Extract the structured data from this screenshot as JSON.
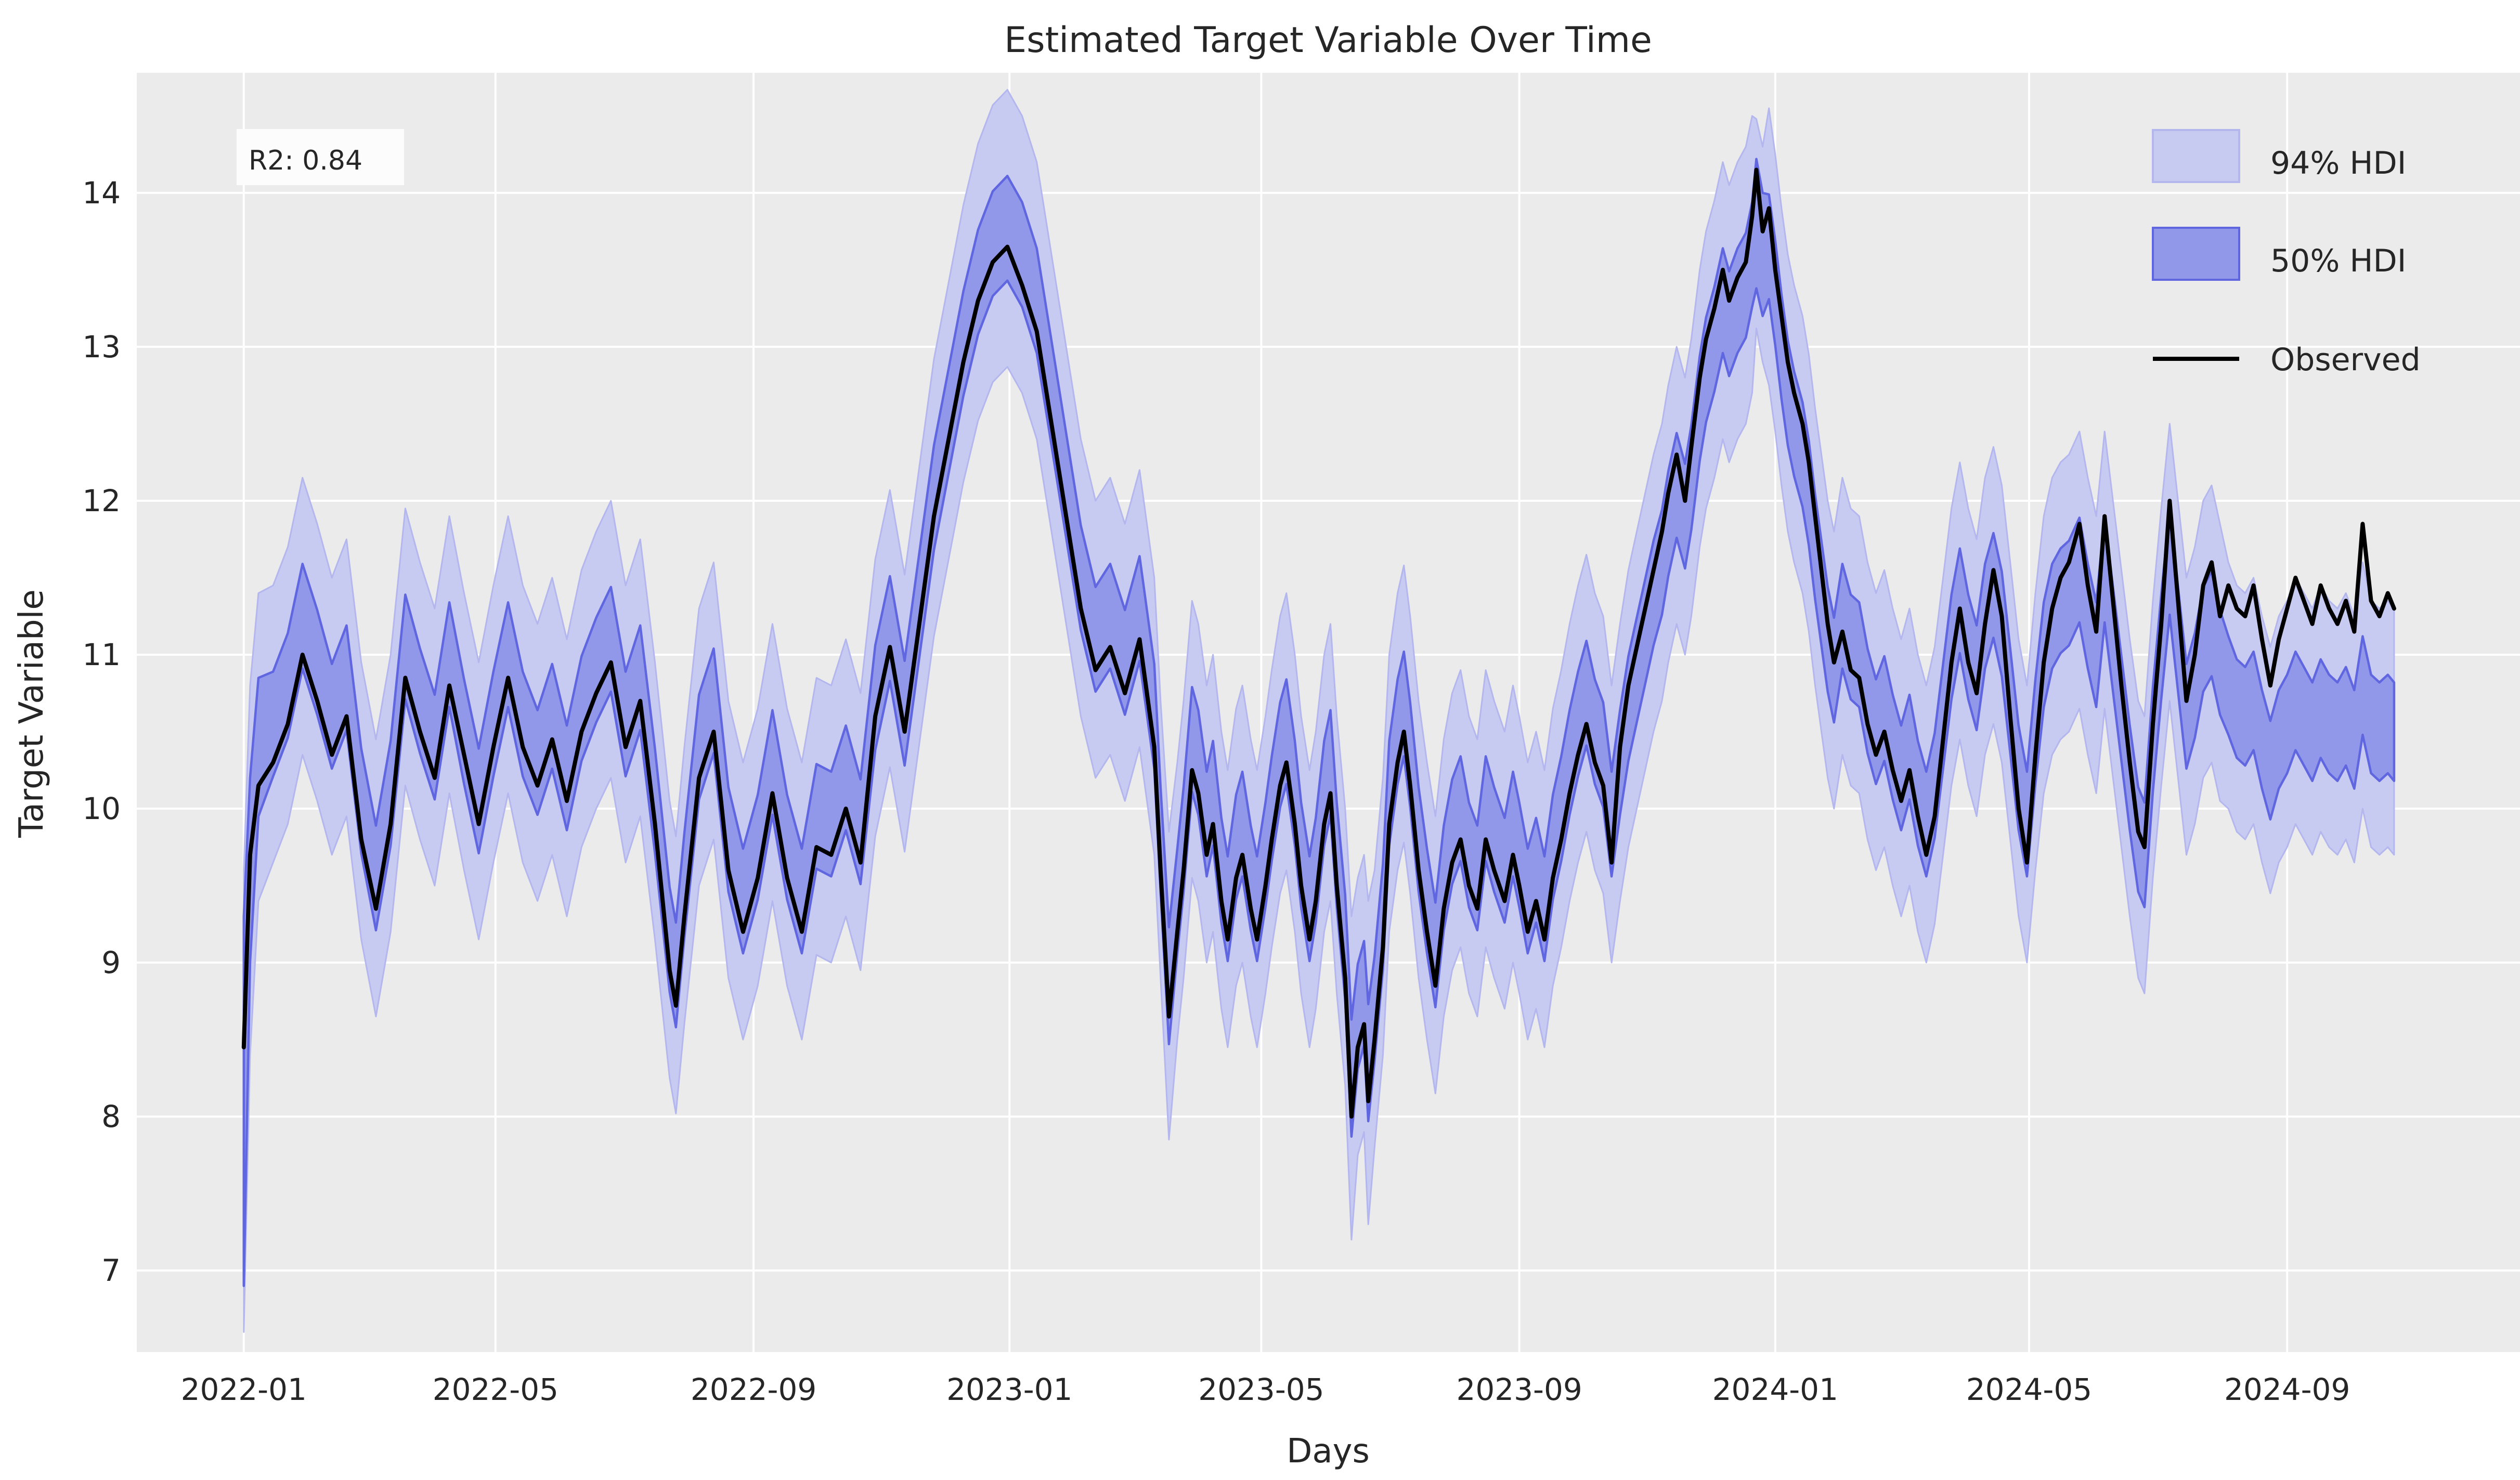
{
  "chart_data": {
    "type": "line",
    "title": "Estimated Target Variable Over Time",
    "xlabel": "Days",
    "ylabel": "Target Variable",
    "annotation": {
      "text": "R2: 0.84"
    },
    "plot_background": "#ebebeb",
    "grid_color": "#ffffff",
    "grid": true,
    "legend": {
      "position": "upper right",
      "entries": [
        {
          "label": "94% HDI",
          "type": "band",
          "fill": "#c7caf1",
          "edge": "#b3b7ee"
        },
        {
          "label": "50% HDI",
          "type": "band",
          "fill": "#9298e9",
          "edge": "#5f66e0"
        },
        {
          "label": "Observed",
          "type": "line",
          "color": "#000000"
        }
      ]
    },
    "x_axis": {
      "start_date": "2022-01-01",
      "tick_labels": [
        "2022-01",
        "2022-05",
        "2022-09",
        "2023-01",
        "2023-05",
        "2023-09",
        "2024-01",
        "2024-05",
        "2024-09"
      ],
      "tick_days": [
        0,
        120,
        243,
        365,
        485,
        608,
        730,
        851,
        974
      ],
      "domain_days": [
        -51,
        1085
      ]
    },
    "y_axis": {
      "ticks": [
        7,
        8,
        9,
        10,
        11,
        12,
        13,
        14
      ],
      "domain": [
        6.47,
        14.78
      ]
    },
    "series": {
      "description": "points are [day_offset_from_2022-01-01, observed, hdi_band_center]; HDI bands are center +/- halfwidth",
      "hdi50_halfwidth_default": 0.34,
      "hdi94_halfwidth_default": 0.9,
      "halfwidth_overrides": {
        "0": [
          1.2,
          1.5
        ],
        "3": [
          0.6,
          1.2
        ],
        "7": [
          0.45,
          1.0
        ],
        "441": [
          0.38,
          1.0
        ],
        "528": [
          0.38,
          1.05
        ],
        "536": [
          0.38,
          1.05
        ],
        "721": [
          0.42,
          0.68
        ],
        "724": [
          0.4,
          0.7
        ]
      },
      "late_halfwidths": {
        "from_day": 946,
        "w50": 0.32,
        "w94": 0.8
      },
      "points": [
        [
          0,
          8.45,
          8.1
        ],
        [
          3,
          9.7,
          9.6
        ],
        [
          7,
          10.15,
          10.4
        ],
        [
          14,
          10.3,
          10.55
        ],
        [
          21,
          10.55,
          10.8
        ],
        [
          28,
          11.0,
          11.25
        ],
        [
          35,
          10.7,
          10.95
        ],
        [
          42,
          10.35,
          10.6
        ],
        [
          49,
          10.6,
          10.85
        ],
        [
          56,
          9.8,
          10.05
        ],
        [
          63,
          9.35,
          9.55
        ],
        [
          70,
          9.9,
          10.1
        ],
        [
          77,
          10.85,
          11.05
        ],
        [
          84,
          10.5,
          10.7
        ],
        [
          91,
          10.2,
          10.4
        ],
        [
          98,
          10.8,
          11.0
        ],
        [
          105,
          10.35,
          10.5
        ],
        [
          112,
          9.9,
          10.05
        ],
        [
          119,
          10.4,
          10.55
        ],
        [
          126,
          10.85,
          11.0
        ],
        [
          133,
          10.4,
          10.55
        ],
        [
          140,
          10.15,
          10.3
        ],
        [
          147,
          10.45,
          10.6
        ],
        [
          154,
          10.05,
          10.2
        ],
        [
          161,
          10.5,
          10.65
        ],
        [
          168,
          10.75,
          10.9
        ],
        [
          175,
          10.95,
          11.1
        ],
        [
          182,
          10.4,
          10.55
        ],
        [
          189,
          10.7,
          10.85
        ],
        [
          196,
          9.9,
          10.05
        ],
        [
          203,
          8.95,
          9.15
        ],
        [
          206,
          8.72,
          8.92
        ],
        [
          210,
          9.3,
          9.5
        ],
        [
          217,
          10.2,
          10.4
        ],
        [
          224,
          10.5,
          10.7
        ],
        [
          231,
          9.6,
          9.8
        ],
        [
          238,
          9.2,
          9.4
        ],
        [
          245,
          9.55,
          9.75
        ],
        [
          252,
          10.1,
          10.3
        ],
        [
          259,
          9.55,
          9.75
        ],
        [
          266,
          9.2,
          9.4
        ],
        [
          273,
          9.75,
          9.95
        ],
        [
          280,
          9.7,
          9.9
        ],
        [
          287,
          10.0,
          10.2
        ],
        [
          294,
          9.65,
          9.85
        ],
        [
          301,
          10.6,
          10.72
        ],
        [
          308,
          11.05,
          11.17
        ],
        [
          315,
          10.5,
          10.62
        ],
        [
          322,
          11.2,
          11.32
        ],
        [
          329,
          11.9,
          12.02
        ],
        [
          336,
          12.4,
          12.52
        ],
        [
          343,
          12.9,
          13.02
        ],
        [
          350,
          13.3,
          13.42
        ],
        [
          357,
          13.55,
          13.67
        ],
        [
          364,
          13.65,
          13.77
        ],
        [
          371,
          13.4,
          13.6
        ],
        [
          378,
          13.1,
          13.3
        ],
        [
          385,
          12.5,
          12.7
        ],
        [
          392,
          11.9,
          12.1
        ],
        [
          399,
          11.3,
          11.5
        ],
        [
          406,
          10.9,
          11.1
        ],
        [
          413,
          11.05,
          11.25
        ],
        [
          420,
          10.75,
          10.95
        ],
        [
          427,
          11.1,
          11.3
        ],
        [
          434,
          10.4,
          10.6
        ],
        [
          437,
          9.6,
          9.8
        ],
        [
          441,
          8.65,
          8.85
        ],
        [
          445,
          9.2,
          9.4
        ],
        [
          448,
          9.6,
          9.8
        ],
        [
          452,
          10.25,
          10.45
        ],
        [
          455,
          10.1,
          10.3
        ],
        [
          459,
          9.7,
          9.9
        ],
        [
          462,
          9.9,
          10.1
        ],
        [
          466,
          9.4,
          9.6
        ],
        [
          469,
          9.15,
          9.35
        ],
        [
          473,
          9.55,
          9.75
        ],
        [
          476,
          9.7,
          9.9
        ],
        [
          480,
          9.35,
          9.55
        ],
        [
          483,
          9.15,
          9.35
        ],
        [
          487,
          9.5,
          9.7
        ],
        [
          490,
          9.8,
          10.0
        ],
        [
          494,
          10.15,
          10.35
        ],
        [
          497,
          10.3,
          10.5
        ],
        [
          501,
          9.9,
          10.1
        ],
        [
          504,
          9.5,
          9.7
        ],
        [
          508,
          9.15,
          9.35
        ],
        [
          511,
          9.4,
          9.6
        ],
        [
          515,
          9.9,
          10.1
        ],
        [
          518,
          10.1,
          10.3
        ],
        [
          521,
          9.5,
          9.7
        ],
        [
          525,
          8.9,
          9.1
        ],
        [
          528,
          8.0,
          8.25
        ],
        [
          531,
          8.45,
          8.65
        ],
        [
          534,
          8.6,
          8.8
        ],
        [
          536,
          8.1,
          8.35
        ],
        [
          539,
          8.5,
          8.7
        ],
        [
          543,
          9.1,
          9.3
        ],
        [
          546,
          9.9,
          10.1
        ],
        [
          550,
          10.3,
          10.5
        ],
        [
          553,
          10.5,
          10.68
        ],
        [
          556,
          10.15,
          10.35
        ],
        [
          560,
          9.6,
          9.8
        ],
        [
          564,
          9.2,
          9.4
        ],
        [
          568,
          8.85,
          9.05
        ],
        [
          572,
          9.35,
          9.55
        ],
        [
          576,
          9.65,
          9.85
        ],
        [
          580,
          9.8,
          10.0
        ],
        [
          584,
          9.5,
          9.7
        ],
        [
          588,
          9.35,
          9.55
        ],
        [
          592,
          9.8,
          10.0
        ],
        [
          596,
          9.6,
          9.8
        ],
        [
          601,
          9.4,
          9.6
        ],
        [
          605,
          9.7,
          9.9
        ],
        [
          608,
          9.5,
          9.7
        ],
        [
          612,
          9.2,
          9.4
        ],
        [
          616,
          9.4,
          9.6
        ],
        [
          620,
          9.15,
          9.35
        ],
        [
          624,
          9.55,
          9.75
        ],
        [
          628,
          9.8,
          10.0
        ],
        [
          632,
          10.1,
          10.3
        ],
        [
          636,
          10.35,
          10.55
        ],
        [
          640,
          10.55,
          10.75
        ],
        [
          644,
          10.3,
          10.5
        ],
        [
          648,
          10.15,
          10.35
        ],
        [
          652,
          9.65,
          9.9
        ],
        [
          656,
          10.4,
          10.3
        ],
        [
          660,
          10.8,
          10.65
        ],
        [
          664,
          11.05,
          10.9
        ],
        [
          668,
          11.3,
          11.15
        ],
        [
          672,
          11.55,
          11.4
        ],
        [
          676,
          11.8,
          11.6
        ],
        [
          679,
          12.05,
          11.85
        ],
        [
          683,
          12.3,
          12.1
        ],
        [
          687,
          12.0,
          11.9
        ],
        [
          690,
          12.35,
          12.15
        ],
        [
          694,
          12.8,
          12.6
        ],
        [
          697,
          13.05,
          12.85
        ],
        [
          701,
          13.25,
          13.05
        ],
        [
          705,
          13.5,
          13.3
        ],
        [
          708,
          13.3,
          13.15
        ],
        [
          712,
          13.45,
          13.3
        ],
        [
          716,
          13.55,
          13.4
        ],
        [
          719,
          13.85,
          13.6
        ],
        [
          721,
          14.15,
          13.8
        ],
        [
          724,
          13.75,
          13.6
        ],
        [
          727,
          13.9,
          13.65
        ],
        [
          730,
          13.5,
          13.35
        ],
        [
          733,
          13.2,
          13.0
        ],
        [
          736,
          12.9,
          12.7
        ],
        [
          739,
          12.7,
          12.5
        ],
        [
          743,
          12.5,
          12.3
        ],
        [
          746,
          12.25,
          12.05
        ],
        [
          749,
          11.9,
          11.7
        ],
        [
          752,
          11.55,
          11.4
        ],
        [
          755,
          11.2,
          11.1
        ],
        [
          758,
          10.95,
          10.9
        ],
        [
          762,
          11.15,
          11.25
        ],
        [
          766,
          10.9,
          11.05
        ],
        [
          770,
          10.85,
          11.0
        ],
        [
          774,
          10.55,
          10.7
        ],
        [
          778,
          10.35,
          10.5
        ],
        [
          782,
          10.5,
          10.65
        ],
        [
          786,
          10.25,
          10.4
        ],
        [
          790,
          10.05,
          10.2
        ],
        [
          794,
          10.25,
          10.4
        ],
        [
          798,
          9.95,
          10.1
        ],
        [
          802,
          9.7,
          9.9
        ],
        [
          806,
          9.95,
          10.15
        ],
        [
          810,
          10.45,
          10.6
        ],
        [
          814,
          10.95,
          11.05
        ],
        [
          818,
          11.3,
          11.35
        ],
        [
          822,
          10.95,
          11.05
        ],
        [
          826,
          10.75,
          10.85
        ],
        [
          830,
          11.2,
          11.25
        ],
        [
          834,
          11.55,
          11.45
        ],
        [
          838,
          11.25,
          11.2
        ],
        [
          842,
          10.6,
          10.7
        ],
        [
          846,
          10.0,
          10.2
        ],
        [
          850,
          9.65,
          9.9
        ],
        [
          854,
          10.35,
          10.5
        ],
        [
          858,
          10.95,
          11.0
        ],
        [
          862,
          11.3,
          11.25
        ],
        [
          866,
          11.5,
          11.35
        ],
        [
          870,
          11.6,
          11.4
        ],
        [
          875,
          11.85,
          11.55
        ],
        [
          879,
          11.45,
          11.25
        ],
        [
          883,
          11.15,
          11.0
        ],
        [
          887,
          11.9,
          11.55
        ],
        [
          891,
          11.35,
          11.1
        ],
        [
          895,
          10.8,
          10.65
        ],
        [
          899,
          10.3,
          10.2
        ],
        [
          903,
          9.85,
          9.8
        ],
        [
          906,
          9.75,
          9.7
        ],
        [
          910,
          10.55,
          10.45
        ],
        [
          914,
          11.2,
          11.05
        ],
        [
          918,
          12.0,
          11.6
        ],
        [
          922,
          11.35,
          11.1
        ],
        [
          926,
          10.7,
          10.6
        ],
        [
          930,
          11.0,
          10.8
        ],
        [
          934,
          11.45,
          11.1
        ],
        [
          938,
          11.6,
          11.2
        ],
        [
          942,
          11.25,
          10.95
        ],
        [
          946,
          11.45,
          10.8
        ],
        [
          950,
          11.3,
          10.65
        ],
        [
          954,
          11.25,
          10.6
        ],
        [
          958,
          11.45,
          10.7
        ],
        [
          962,
          11.1,
          10.45
        ],
        [
          966,
          10.8,
          10.25
        ],
        [
          970,
          11.1,
          10.45
        ],
        [
          974,
          11.3,
          10.55
        ],
        [
          978,
          11.5,
          10.7
        ],
        [
          982,
          11.35,
          10.6
        ],
        [
          986,
          11.2,
          10.5
        ],
        [
          990,
          11.45,
          10.65
        ],
        [
          994,
          11.3,
          10.55
        ],
        [
          998,
          11.2,
          10.5
        ],
        [
          1002,
          11.35,
          10.6
        ],
        [
          1006,
          11.15,
          10.45
        ],
        [
          1010,
          11.85,
          10.8
        ],
        [
          1014,
          11.35,
          10.55
        ],
        [
          1018,
          11.25,
          10.5
        ],
        [
          1022,
          11.4,
          10.55
        ],
        [
          1025,
          11.3,
          10.5
        ]
      ]
    }
  }
}
